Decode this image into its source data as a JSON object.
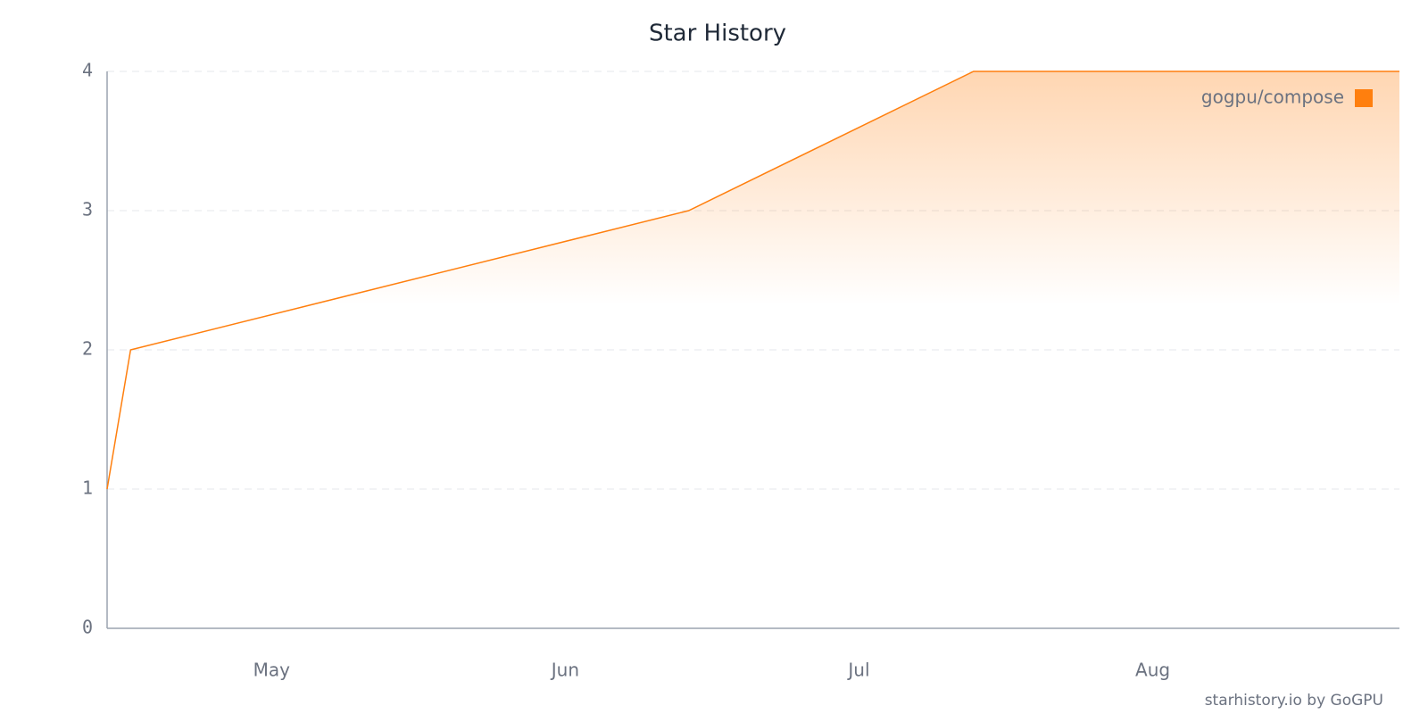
{
  "chart_data": {
    "type": "line",
    "title": "Star History",
    "x": [
      4.44,
      4.52,
      6.42,
      7.39,
      8.84
    ],
    "series": [
      {
        "name": "gogpu/compose",
        "color": "#ff7f0e",
        "values": [
          1,
          2,
          3,
          4,
          4
        ]
      }
    ],
    "xlim": [
      4.44,
      8.84
    ],
    "xticks": [
      {
        "value": 5,
        "label": "May"
      },
      {
        "value": 6,
        "label": "Jun"
      },
      {
        "value": 7,
        "label": "Jul"
      },
      {
        "value": 8,
        "label": "Aug"
      }
    ],
    "ylim": [
      0,
      4
    ],
    "yticks": [
      0,
      1,
      2,
      3,
      4
    ],
    "grid": true,
    "legend": "top-right",
    "credit": "starhistory.io by GoGPU"
  }
}
